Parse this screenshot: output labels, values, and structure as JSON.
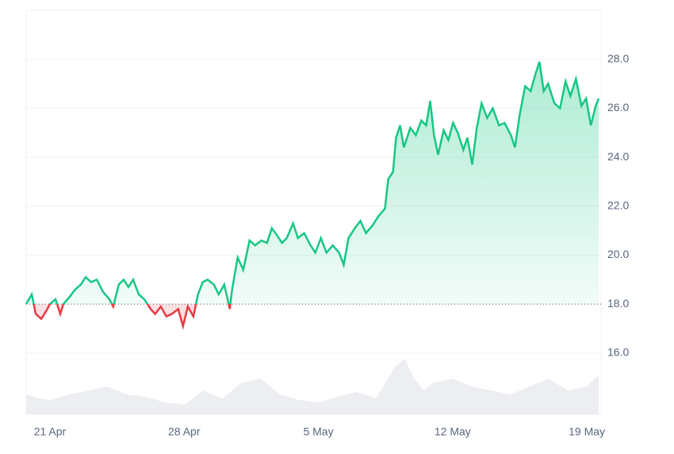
{
  "chart_data": {
    "type": "line",
    "baseline": 18.0,
    "up_color": "#16c784",
    "down_color": "#ea3943",
    "xlim": [
      -1.24,
      28.74
    ],
    "ylim": [
      13.5,
      30
    ],
    "xticks": [
      {
        "value": 0,
        "label": "21 Apr"
      },
      {
        "value": 7,
        "label": "28 Apr"
      },
      {
        "value": 14,
        "label": "5 May"
      },
      {
        "value": 21,
        "label": "12 May"
      },
      {
        "value": 28,
        "label": "19 May"
      }
    ],
    "yticks": [
      {
        "value": 16,
        "label": "16.0"
      },
      {
        "value": 18,
        "label": "18.0"
      },
      {
        "value": 20,
        "label": "20.0"
      },
      {
        "value": 22,
        "label": "22.0"
      },
      {
        "value": 24,
        "label": "24.0"
      },
      {
        "value": 26,
        "label": "26.0"
      },
      {
        "value": 28,
        "label": "28.0"
      }
    ],
    "grid": true,
    "series": [
      {
        "x": [
          -1.24,
          -0.95,
          -0.74,
          -0.45,
          -0.21,
          0,
          0.29,
          0.54,
          0.7,
          1.03,
          1.32,
          1.61,
          1.86,
          2.15,
          2.44,
          2.77,
          3.1,
          3.3,
          3.59,
          3.84,
          4.09,
          4.34,
          4.63,
          4.92,
          5.25,
          5.49,
          5.78,
          6.07,
          6.36,
          6.69,
          6.94,
          7.19,
          7.48,
          7.72,
          7.97,
          8.22,
          8.55,
          8.8,
          9.09,
          9.38,
          9.5,
          9.79,
          10.08,
          10.41,
          10.7,
          11.03,
          11.32,
          11.57,
          11.85,
          12.1,
          12.35,
          12.68,
          12.93,
          13.26,
          13.59,
          13.84,
          14.13,
          14.42,
          14.75,
          15.08,
          15.32,
          15.57,
          15.9,
          16.19,
          16.48,
          16.81,
          17.14,
          17.47,
          17.64,
          17.89,
          18.05,
          18.26,
          18.46,
          18.79,
          19.08,
          19.37,
          19.62,
          19.83,
          20.03,
          20.24,
          20.53,
          20.78,
          21.02,
          21.27,
          21.56,
          21.77,
          22.02,
          22.26,
          22.51,
          22.8,
          23.09,
          23.42,
          23.71,
          24.04,
          24.25,
          24.49,
          24.78,
          25.07,
          25.32,
          25.53,
          25.75,
          25.98,
          26.31,
          26.6,
          26.89,
          27.14,
          27.43,
          27.72,
          27.96,
          28.21,
          28.46,
          28.62
        ],
        "values": [
          18.0,
          18.4,
          17.6,
          17.4,
          17.7,
          18.0,
          18.2,
          17.6,
          18.0,
          18.3,
          18.6,
          18.8,
          19.1,
          18.9,
          19.0,
          18.5,
          18.2,
          17.9,
          18.8,
          19.0,
          18.7,
          19.0,
          18.4,
          18.2,
          17.8,
          17.6,
          17.9,
          17.5,
          17.6,
          17.8,
          17.1,
          17.9,
          17.5,
          18.4,
          18.9,
          19.0,
          18.8,
          18.4,
          18.8,
          17.8,
          18.6,
          19.9,
          19.4,
          20.6,
          20.4,
          20.6,
          20.5,
          21.1,
          20.8,
          20.5,
          20.7,
          21.3,
          20.7,
          20.9,
          20.4,
          20.1,
          20.7,
          20.1,
          20.4,
          20.1,
          19.6,
          20.7,
          21.1,
          21.4,
          20.9,
          21.2,
          21.6,
          21.9,
          23.1,
          23.4,
          24.8,
          25.3,
          24.4,
          25.2,
          24.9,
          25.5,
          25.3,
          26.3,
          24.9,
          24.1,
          25.1,
          24.7,
          25.4,
          25.0,
          24.3,
          24.8,
          23.7,
          25.2,
          26.2,
          25.6,
          26.0,
          25.3,
          25.4,
          24.9,
          24.4,
          25.7,
          26.9,
          26.7,
          27.4,
          27.9,
          26.7,
          27.0,
          26.2,
          26.0,
          27.1,
          26.5,
          27.2,
          26.1,
          26.4,
          25.3,
          26.1,
          26.4
        ]
      }
    ],
    "volume": {
      "color": "#eceef1",
      "ylim": [
        0,
        100
      ],
      "x": [
        -1.24,
        -0.5,
        0,
        1,
        2,
        3,
        4,
        5,
        6,
        7,
        8,
        9,
        10,
        11,
        12,
        13,
        14,
        15,
        16,
        17,
        18,
        18.5,
        19,
        19.5,
        20,
        21,
        22,
        23,
        24,
        25,
        26,
        27,
        28,
        28.62
      ],
      "values": [
        25,
        20,
        18,
        25,
        30,
        35,
        25,
        22,
        15,
        12,
        30,
        20,
        40,
        45,
        25,
        18,
        15,
        22,
        28,
        20,
        60,
        70,
        45,
        30,
        40,
        45,
        35,
        30,
        25,
        35,
        45,
        30,
        35,
        50
      ]
    }
  }
}
